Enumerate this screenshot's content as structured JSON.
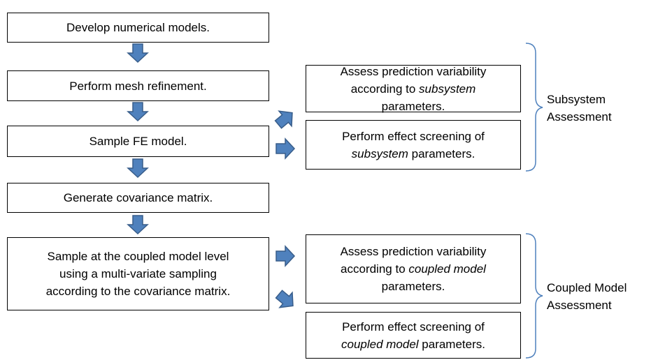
{
  "left_boxes": [
    {
      "lines": [
        [
          {
            "text": "Develop numerical models."
          }
        ]
      ]
    },
    {
      "lines": [
        [
          {
            "text": "Perform mesh refinement."
          }
        ]
      ]
    },
    {
      "lines": [
        [
          {
            "text": "Sample FE model."
          }
        ]
      ]
    },
    {
      "lines": [
        [
          {
            "text": "Generate covariance matrix."
          }
        ]
      ]
    },
    {
      "lines": [
        [
          {
            "text": "Sample at the coupled model level"
          }
        ],
        [
          {
            "text": "using a multi-variate sampling"
          }
        ],
        [
          {
            "text": "according to the covariance matrix."
          }
        ]
      ]
    }
  ],
  "right_boxes": [
    {
      "lines": [
        [
          {
            "text": "Assess prediction variability"
          }
        ],
        [
          {
            "text": "according to "
          },
          {
            "text": "subsystem",
            "italic": true
          }
        ],
        [
          {
            "text": "parameters."
          }
        ]
      ]
    },
    {
      "lines": [
        [
          {
            "text": "Perform effect screening of"
          }
        ],
        [
          {
            "text": "subsystem",
            "italic": true
          },
          {
            "text": " parameters."
          }
        ]
      ]
    },
    {
      "lines": [
        [
          {
            "text": "Assess prediction variability"
          }
        ],
        [
          {
            "text": "according to "
          },
          {
            "text": "coupled model",
            "italic": true
          }
        ],
        [
          {
            "text": "parameters."
          }
        ]
      ]
    },
    {
      "lines": [
        [
          {
            "text": "Perform effect screening of"
          }
        ],
        [
          {
            "text": "coupled model",
            "italic": true
          },
          {
            "text": " parameters."
          }
        ]
      ]
    }
  ],
  "groups": [
    {
      "label_lines": [
        "Subsystem",
        "Assessment"
      ]
    },
    {
      "label_lines": [
        "Coupled Model",
        "Assessment"
      ]
    }
  ]
}
